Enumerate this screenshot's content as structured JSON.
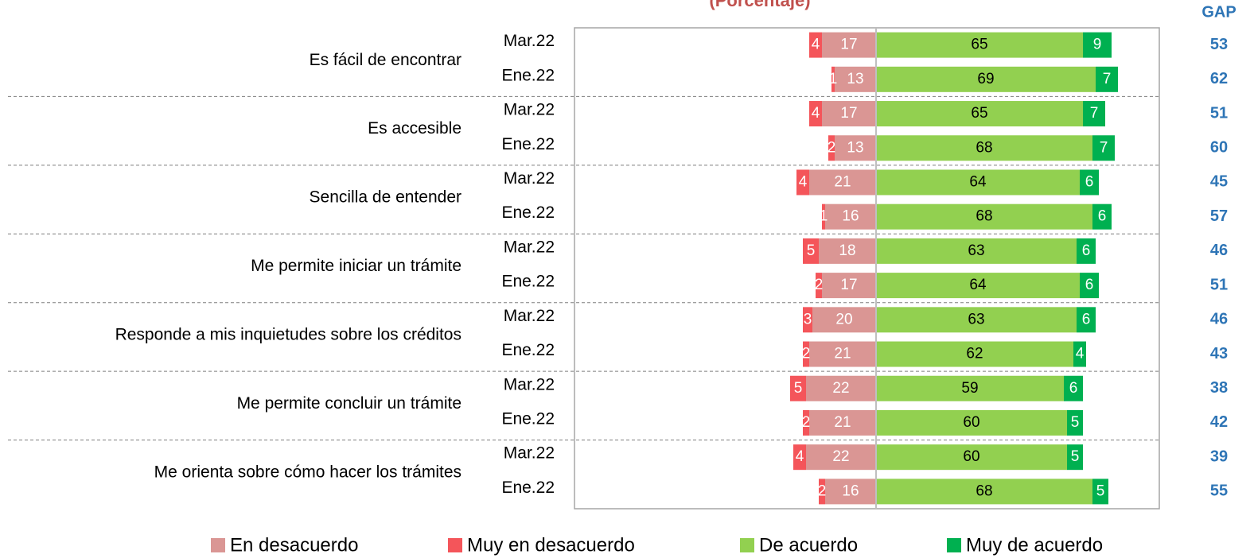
{
  "chart_data": {
    "type": "diverging_bar",
    "title": "(Porcentaje)",
    "gap_title": "GAP",
    "groups": [
      "Es fácil de encontrar",
      "Es accesible",
      "Sencilla de entender",
      "Me permite iniciar un trámite",
      "Responde a mis inquietudes sobre los créditos",
      "Me permite concluir un trámite",
      "Me orienta sobre cómo hacer los trámites"
    ],
    "row_labels": [
      "Mar.22",
      "Ene.22",
      "Mar.22",
      "Ene.22",
      "Mar.22",
      "Ene.22",
      "Mar.22",
      "Ene.22",
      "Mar.22",
      "Ene.22",
      "Mar.22",
      "Ene.22",
      "Mar.22",
      "Ene.22"
    ],
    "series": [
      {
        "name": "En desacuerdo",
        "color": "#da9694",
        "side": "negative",
        "label_color": "#ffffff",
        "values": [
          17,
          13,
          17,
          13,
          21,
          16,
          18,
          17,
          20,
          21,
          22,
          21,
          22,
          16
        ]
      },
      {
        "name": "Muy en desacuerdo",
        "color": "#f4555a",
        "side": "negative",
        "label_color": "#ffffff",
        "values": [
          4,
          1,
          4,
          2,
          4,
          1,
          5,
          2,
          3,
          2,
          5,
          2,
          4,
          2
        ]
      },
      {
        "name": "De acuerdo",
        "color": "#92d050",
        "side": "positive",
        "label_color": "#000000",
        "values": [
          65,
          69,
          65,
          68,
          64,
          68,
          63,
          64,
          63,
          62,
          59,
          60,
          60,
          68
        ]
      },
      {
        "name": "Muy de acuerdo",
        "color": "#00b050",
        "side": "positive",
        "label_color": "#ffffff",
        "values": [
          9,
          7,
          7,
          7,
          6,
          6,
          6,
          6,
          6,
          4,
          6,
          5,
          5,
          5
        ]
      }
    ],
    "gap": [
      53,
      62,
      51,
      60,
      45,
      57,
      46,
      51,
      46,
      43,
      38,
      42,
      39,
      55
    ]
  }
}
